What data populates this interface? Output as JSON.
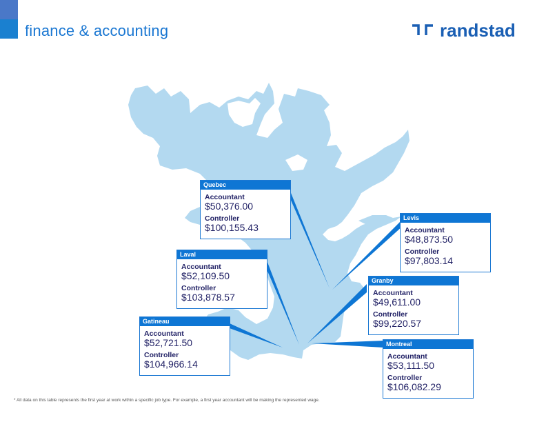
{
  "header": {
    "title": "finance & accounting",
    "brand": "randstad"
  },
  "colors": {
    "land": "#b3d9f0",
    "accent": "#0e76d4",
    "brand": "#1a5fb4",
    "text": "#222266"
  },
  "cities": [
    {
      "name": "Quebec",
      "role1": "Accountant",
      "value1": "$50,376.00",
      "role2": "Controller",
      "value2": "$100,155.43"
    },
    {
      "name": "Levis",
      "role1": "Accountant",
      "value1": "$48,873.50",
      "role2": "Controller",
      "value2": "$97,803.14"
    },
    {
      "name": "Laval",
      "role1": "Accountant",
      "value1": "$52,109.50",
      "role2": "Controller",
      "value2": "$103,878.57"
    },
    {
      "name": "Granby",
      "role1": "Accountant",
      "value1": "$49,611.00",
      "role2": "Controller",
      "value2": "$99,220.57"
    },
    {
      "name": "Gatineau",
      "role1": "Accountant",
      "value1": "$52,721.50",
      "role2": "Controller",
      "value2": "$104,966.14"
    },
    {
      "name": "Montreal",
      "role1": "Accountant",
      "value1": "$53,111.50",
      "role2": "Controller",
      "value2": "$106,082.29"
    }
  ],
  "footnote": "* All data on this table represents the first year at work within a specific job type. For example, a first year accountant will be making the represented wage."
}
